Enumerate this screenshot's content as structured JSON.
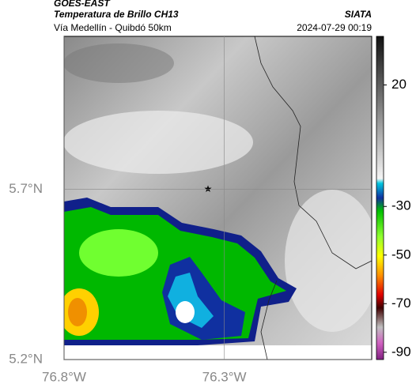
{
  "header": {
    "source": "GOES-EAST",
    "title": "Temperatura de Brillo CH13",
    "agency": "SIATA",
    "subtitle": "Vía Medellín - Quibdó 50km",
    "timestamp": "2024-07-29 00:19"
  },
  "map": {
    "xlim": [
      -76.8,
      -75.84
    ],
    "ylim": [
      5.2,
      6.15
    ],
    "xticks": [
      {
        "value": -76.8,
        "label": "76.8°W"
      },
      {
        "value": -76.3,
        "label": "76.3°W"
      }
    ],
    "yticks": [
      {
        "value": 5.2,
        "label": "5.2°N"
      },
      {
        "value": 5.7,
        "label": "5.7°N"
      }
    ]
  },
  "colorbar": {
    "lim": [
      -93,
      40
    ],
    "ticks": [
      20,
      -30,
      -50,
      -70,
      -90
    ]
  }
}
